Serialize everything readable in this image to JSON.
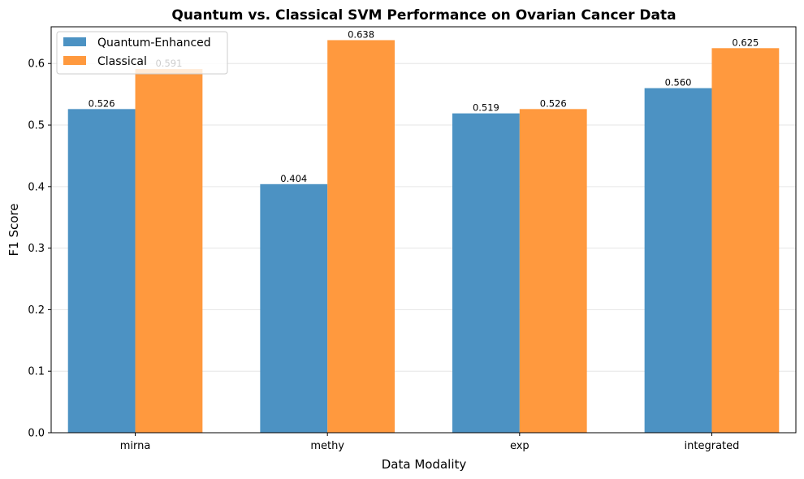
{
  "chart_data": {
    "type": "bar",
    "title": "Quantum vs. Classical SVM Performance on Ovarian Cancer Data",
    "xlabel": "Data Modality",
    "ylabel": "F1 Score",
    "categories": [
      "mirna",
      "methy",
      "exp",
      "integrated"
    ],
    "series": [
      {
        "name": "Quantum-Enhanced",
        "color": "#4c92c3",
        "values": [
          0.526,
          0.404,
          0.519,
          0.56
        ],
        "labels": [
          "0.526",
          "0.404",
          "0.519",
          "0.560"
        ]
      },
      {
        "name": "Classical",
        "color": "#ff993e",
        "values": [
          0.591,
          0.638,
          0.526,
          0.625
        ],
        "labels": [
          "0.591",
          "0.638",
          "0.526",
          "0.625"
        ]
      }
    ],
    "ylim": [
      0,
      0.6597
    ],
    "yticks": [
      0.0,
      0.1,
      0.2,
      0.3,
      0.4,
      0.5,
      0.6
    ],
    "ytick_labels": [
      "0.0",
      "0.1",
      "0.2",
      "0.3",
      "0.4",
      "0.5",
      "0.6"
    ],
    "grid": "y",
    "legend_position": "top-left"
  }
}
